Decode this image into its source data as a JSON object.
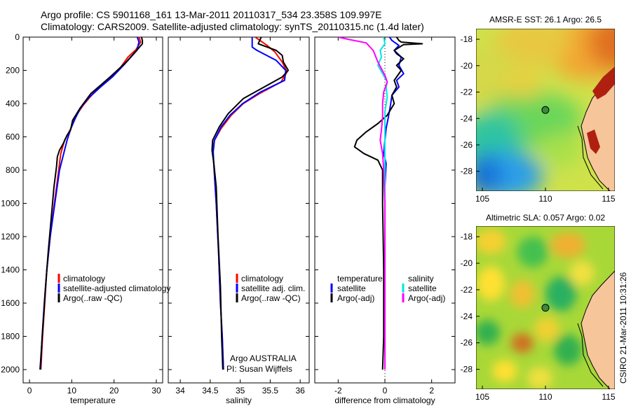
{
  "title_line1": "Argo profile: CS 5901168_161 13-Mar-2011 20110317_534 23.358S 109.997E",
  "title_line2": "Climatology: CARS2009. Satellite-adjusted climatology: synTS_20110315.nc (1.4d later)",
  "credit": "CSIRO 21-Mar-2011 10:31:26",
  "colors": {
    "climatology": "#ff0000",
    "satellite": "#0000ff",
    "argo": "#000000",
    "sat_salt": "#00e5e5",
    "argo_salt": "#ff00ff",
    "dot": "#444444"
  },
  "chart_data": [
    {
      "type": "line",
      "id": "temperature",
      "xlabel": "temperature",
      "ylabel": "",
      "xlim": [
        -1.5,
        31.5
      ],
      "ylim": [
        2080,
        0
      ],
      "xticks": [
        0,
        10,
        20,
        30
      ],
      "yticks": [
        0,
        200,
        400,
        600,
        800,
        1000,
        1200,
        1400,
        1600,
        1800,
        2000
      ],
      "legend": [
        "climatology",
        "satellite-adjusted climatology",
        "Argo(..raw -QC)"
      ],
      "series": [
        {
          "name": "climatology",
          "color": "#ff0000",
          "points": [
            [
              25.9,
              0
            ],
            [
              26.3,
              30
            ],
            [
              25.2,
              75
            ],
            [
              23.3,
              120
            ],
            [
              21.6,
              180
            ],
            [
              18.5,
              260
            ],
            [
              15.0,
              340
            ],
            [
              12.7,
              410
            ],
            [
              10.8,
              480
            ],
            [
              9.8,
              550
            ],
            [
              8.3,
              620
            ],
            [
              7.4,
              700
            ],
            [
              6.9,
              800
            ],
            [
              5.9,
              1000
            ],
            [
              4.9,
              1200
            ],
            [
              4.1,
              1400
            ],
            [
              3.6,
              1600
            ],
            [
              3.1,
              1800
            ],
            [
              2.7,
              2000
            ]
          ]
        },
        {
          "name": "satellite-adjusted climatology",
          "color": "#0000ff",
          "points": [
            [
              25.5,
              0
            ],
            [
              25.9,
              30
            ],
            [
              25.4,
              80
            ],
            [
              22.6,
              160
            ],
            [
              19.6,
              240
            ],
            [
              16.8,
              300
            ],
            [
              13.8,
              370
            ],
            [
              12.0,
              430
            ],
            [
              10.8,
              490
            ],
            [
              9.8,
              550
            ],
            [
              8.9,
              620
            ],
            [
              8.1,
              700
            ],
            [
              7.1,
              800
            ],
            [
              6.0,
              1000
            ],
            [
              4.9,
              1200
            ],
            [
              4.1,
              1400
            ],
            [
              3.5,
              1600
            ],
            [
              3.0,
              1800
            ],
            [
              2.6,
              2000
            ]
          ]
        },
        {
          "name": "Argo(..raw -QC)",
          "color": "#000000",
          "points": [
            [
              26.5,
              0
            ],
            [
              26.7,
              20
            ],
            [
              26.7,
              40
            ],
            [
              25.7,
              70
            ],
            [
              22.9,
              150
            ],
            [
              19.5,
              230
            ],
            [
              17.7,
              270
            ],
            [
              14.5,
              340
            ],
            [
              11.9,
              430
            ],
            [
              10.2,
              500
            ],
            [
              9.7,
              560
            ],
            [
              8.9,
              590
            ],
            [
              8.0,
              640
            ],
            [
              7.1,
              680
            ],
            [
              6.6,
              720
            ],
            [
              6.4,
              780
            ],
            [
              5.8,
              900
            ],
            [
              5.1,
              1100
            ],
            [
              4.4,
              1300
            ],
            [
              3.8,
              1500
            ],
            [
              3.3,
              1700
            ],
            [
              2.9,
              1850
            ],
            [
              2.5,
              2000
            ]
          ]
        }
      ]
    },
    {
      "type": "line",
      "id": "salinity",
      "xlabel": "salinity",
      "ylabel": "",
      "xlim": [
        33.8,
        36.15
      ],
      "ylim": [
        2080,
        0
      ],
      "xticks": [
        34,
        34.5,
        35,
        35.5,
        36
      ],
      "legend": [
        "climatology",
        "satellite adj. clim.",
        "Argo(..raw -QC)"
      ],
      "annotation": [
        "Argo AUSTRALIA",
        "PI: Susan Wijffels"
      ],
      "series": [
        {
          "name": "climatology",
          "color": "#ff0000",
          "points": [
            [
              35.25,
              0
            ],
            [
              35.45,
              50
            ],
            [
              35.58,
              90
            ],
            [
              35.7,
              150
            ],
            [
              35.78,
              210
            ],
            [
              35.68,
              270
            ],
            [
              35.32,
              340
            ],
            [
              35.05,
              400
            ],
            [
              34.85,
              470
            ],
            [
              34.68,
              550
            ],
            [
              34.57,
              620
            ],
            [
              34.54,
              680
            ],
            [
              34.56,
              760
            ],
            [
              34.6,
              1000
            ],
            [
              34.64,
              1300
            ],
            [
              34.67,
              1600
            ],
            [
              34.7,
              1800
            ],
            [
              34.72,
              2000
            ]
          ]
        },
        {
          "name": "satellite adj. clim.",
          "color": "#0000ff",
          "points": [
            [
              35.2,
              0
            ],
            [
              35.2,
              60
            ],
            [
              35.28,
              80
            ],
            [
              35.6,
              140
            ],
            [
              35.76,
              200
            ],
            [
              35.74,
              260
            ],
            [
              35.34,
              330
            ],
            [
              35.04,
              400
            ],
            [
              34.83,
              470
            ],
            [
              34.68,
              540
            ],
            [
              34.57,
              620
            ],
            [
              34.55,
              690
            ],
            [
              34.56,
              770
            ],
            [
              34.6,
              1000
            ],
            [
              34.64,
              1300
            ],
            [
              34.67,
              1600
            ],
            [
              34.7,
              1800
            ],
            [
              34.72,
              2000
            ]
          ]
        },
        {
          "name": "Argo(..raw -QC)",
          "color": "#000000",
          "points": [
            [
              35.35,
              0
            ],
            [
              35.3,
              40
            ],
            [
              35.6,
              80
            ],
            [
              35.7,
              110
            ],
            [
              35.72,
              150
            ],
            [
              35.8,
              200
            ],
            [
              35.7,
              240
            ],
            [
              35.5,
              280
            ],
            [
              35.05,
              370
            ],
            [
              34.8,
              460
            ],
            [
              34.65,
              540
            ],
            [
              34.54,
              620
            ],
            [
              34.53,
              680
            ],
            [
              34.56,
              760
            ],
            [
              34.6,
              900
            ],
            [
              34.63,
              1200
            ],
            [
              34.67,
              1500
            ],
            [
              34.69,
              1800
            ],
            [
              34.71,
              2000
            ]
          ]
        }
      ]
    },
    {
      "type": "line",
      "id": "difference",
      "xlabel": "difference from climatology",
      "ylabel": "",
      "xlim": [
        -3.0,
        3.0
      ],
      "ylim": [
        2080,
        0
      ],
      "xticks": [
        -2,
        0,
        2
      ],
      "legend_left": [
        "temperature",
        "satellite",
        "Argo(-adj)"
      ],
      "legend_right": [
        "salinity",
        "satellite",
        "Argo(-adj)"
      ],
      "series": [
        {
          "name": "temperature satellite",
          "color": "#0000ff",
          "points": [
            [
              0.2,
              0
            ],
            [
              0.3,
              20
            ],
            [
              0.6,
              50
            ],
            [
              0.4,
              80
            ],
            [
              0.7,
              120
            ],
            [
              0.6,
              170
            ],
            [
              0.8,
              220
            ],
            [
              0.5,
              260
            ],
            [
              0.6,
              300
            ],
            [
              0.3,
              350
            ],
            [
              0.25,
              400
            ],
            [
              0.15,
              480
            ],
            [
              0.05,
              550
            ],
            [
              0.0,
              620
            ],
            [
              -0.05,
              700
            ],
            [
              0.05,
              760
            ],
            [
              0.0,
              900
            ],
            [
              0.0,
              1200
            ],
            [
              0.0,
              1500
            ],
            [
              0.0,
              1800
            ],
            [
              0.0,
              2000
            ]
          ]
        },
        {
          "name": "temperature Argo(-adj)",
          "color": "#000000",
          "points": [
            [
              0.5,
              0
            ],
            [
              0.6,
              20
            ],
            [
              0.7,
              30
            ],
            [
              1.6,
              40
            ],
            [
              0.8,
              45
            ],
            [
              0.4,
              80
            ],
            [
              0.5,
              100
            ],
            [
              0.8,
              130
            ],
            [
              0.5,
              170
            ],
            [
              0.7,
              200
            ],
            [
              0.4,
              260
            ],
            [
              0.5,
              300
            ],
            [
              0.3,
              350
            ],
            [
              0.4,
              400
            ],
            [
              0.1,
              470
            ],
            [
              -0.3,
              520
            ],
            [
              -0.8,
              570
            ],
            [
              -1.2,
              620
            ],
            [
              -1.3,
              660
            ],
            [
              -0.9,
              700
            ],
            [
              -0.3,
              740
            ],
            [
              -0.1,
              800
            ],
            [
              -0.1,
              1000
            ],
            [
              -0.05,
              1400
            ],
            [
              -0.05,
              1800
            ],
            [
              -0.1,
              2000
            ]
          ]
        },
        {
          "name": "salinity satellite",
          "color": "#00e5e5",
          "points": [
            [
              -0.05,
              0
            ],
            [
              0.0,
              40
            ],
            [
              -0.2,
              80
            ],
            [
              -0.15,
              120
            ],
            [
              -0.3,
              170
            ],
            [
              -0.1,
              220
            ],
            [
              0.1,
              270
            ],
            [
              0.05,
              300
            ],
            [
              0.1,
              360
            ],
            [
              0.0,
              450
            ],
            [
              0.0,
              600
            ],
            [
              0.0,
              800
            ],
            [
              0.0,
              1000
            ],
            [
              0.0,
              1400
            ],
            [
              0.0,
              1800
            ],
            [
              0.0,
              2000
            ]
          ]
        },
        {
          "name": "salinity Argo(-adj)",
          "color": "#ff00ff",
          "points": [
            [
              -2.0,
              0
            ],
            [
              -1.5,
              15
            ],
            [
              -0.8,
              35
            ],
            [
              -0.5,
              80
            ],
            [
              -0.3,
              150
            ],
            [
              0.0,
              230
            ],
            [
              0.1,
              270
            ],
            [
              -0.05,
              330
            ],
            [
              -0.1,
              400
            ],
            [
              -0.1,
              480
            ],
            [
              -0.15,
              560
            ],
            [
              -0.2,
              620
            ],
            [
              -0.1,
              700
            ],
            [
              -0.05,
              800
            ],
            [
              0.0,
              1000
            ],
            [
              0.0,
              1400
            ],
            [
              0.0,
              1800
            ],
            [
              0.0,
              2000
            ]
          ]
        }
      ]
    },
    {
      "type": "heatmap",
      "id": "sst_map",
      "title": "AMSR-E SST: 26.1 Argo: 26.5",
      "xlim": [
        104.5,
        115.5
      ],
      "ylim": [
        -29.5,
        -17.2
      ],
      "xticks": [
        105,
        110,
        115
      ],
      "yticks": [
        -18,
        -20,
        -22,
        -24,
        -26,
        -28
      ],
      "argo_position": [
        109.997,
        -23.358
      ]
    },
    {
      "type": "heatmap",
      "id": "sla_map",
      "title": "Altimetric SLA: 0.057 Argo: 0.02",
      "xlim": [
        104.5,
        115.5
      ],
      "ylim": [
        -29.5,
        -17.2
      ],
      "xticks": [
        105,
        110,
        115
      ],
      "yticks": [
        -18,
        -20,
        -22,
        -24,
        -26,
        -28
      ],
      "argo_position": [
        109.997,
        -23.358
      ]
    }
  ]
}
